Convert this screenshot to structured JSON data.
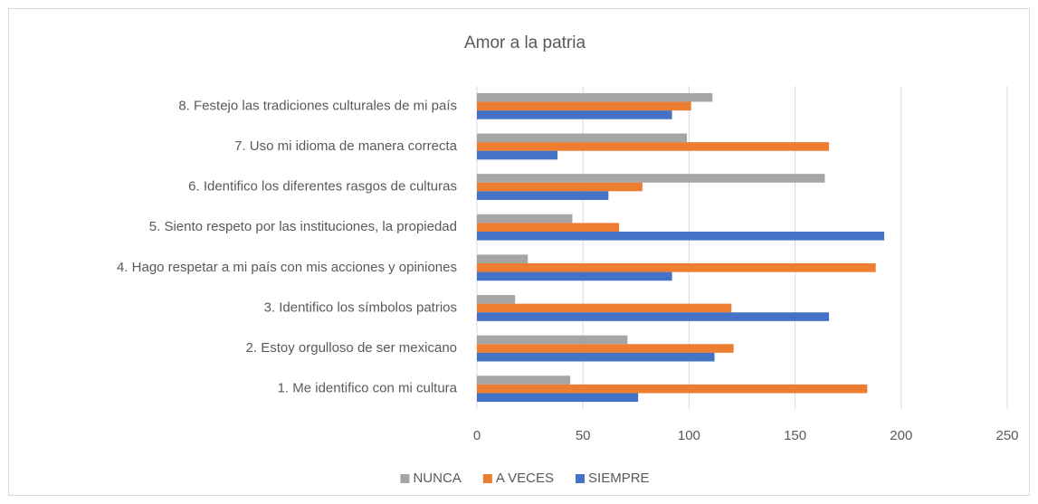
{
  "chart_data": {
    "type": "bar",
    "orientation": "horizontal",
    "title": "Amor a la patria",
    "categories": [
      "1. Me identifico con mi cultura",
      "2. Estoy orgulloso de ser mexicano",
      "3. Identifico los símbolos patrios",
      "4. Hago respetar a mi país con mis acciones y opiniones",
      "5. Siento respeto por las instituciones, la propiedad",
      "6. Identifico los diferentes rasgos de culturas",
      "7. Uso mi idioma de manera correcta",
      "8. Festejo las tradiciones culturales de mi país"
    ],
    "series": [
      {
        "name": "NUNCA",
        "color": "#a5a5a5",
        "values": [
          44,
          71,
          18,
          24,
          45,
          164,
          99,
          111
        ]
      },
      {
        "name": "A VECES",
        "color": "#ed7d31",
        "values": [
          184,
          121,
          120,
          188,
          67,
          78,
          166,
          101
        ]
      },
      {
        "name": "SIEMPRE",
        "color": "#4472c4",
        "values": [
          76,
          112,
          166,
          92,
          192,
          62,
          38,
          92
        ]
      }
    ],
    "xlim": [
      0,
      250
    ],
    "xticks": [
      0,
      50,
      100,
      150,
      200,
      250
    ],
    "grid": true,
    "legend": "bottom"
  }
}
